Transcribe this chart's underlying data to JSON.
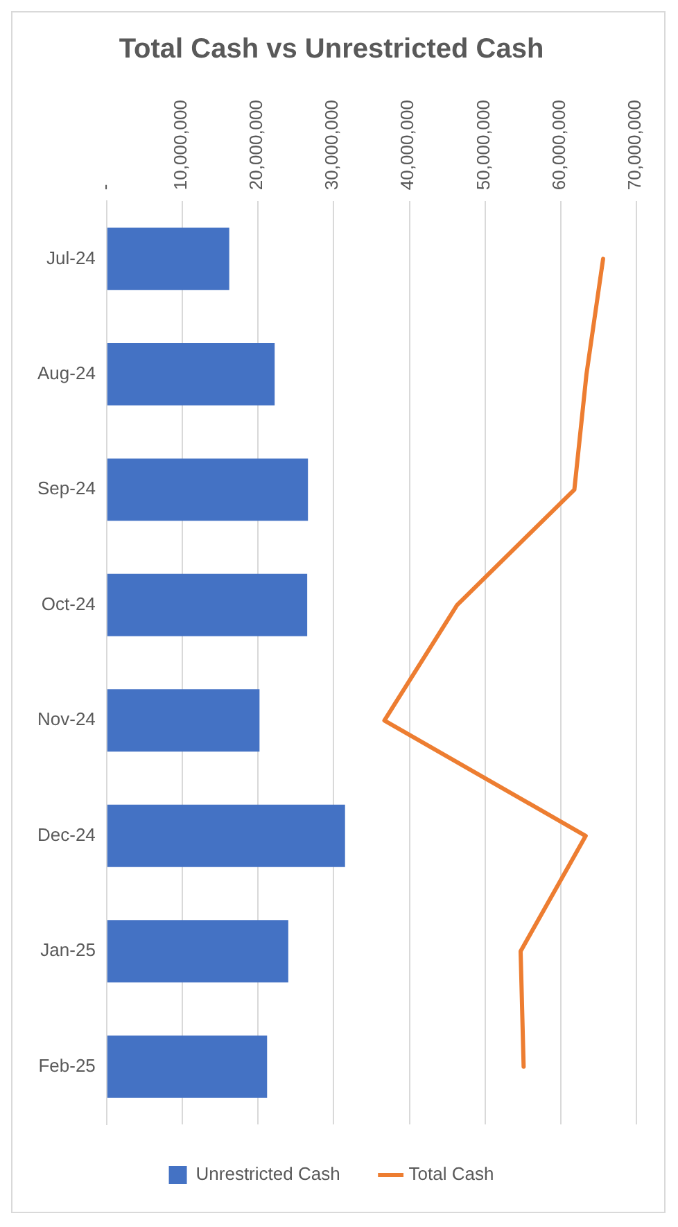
{
  "chart_data": {
    "type": "bar",
    "orientation": "horizontal",
    "title": "Total Cash vs Unrestricted Cash",
    "categories": [
      "Jul-24",
      "Aug-24",
      "Sep-24",
      "Oct-24",
      "Nov-24",
      "Dec-24",
      "Jan-25",
      "Feb-25"
    ],
    "series": [
      {
        "name": "Unrestricted Cash",
        "color": "#4472c4",
        "values": [
          16200000,
          22200000,
          26600000,
          26500000,
          20200000,
          31500000,
          24000000,
          21200000
        ]
      },
      {
        "name": "Total Cash",
        "type": "line",
        "color": "#ed7d31",
        "values": [
          65600000,
          63400000,
          61800000,
          46300000,
          36700000,
          63300000,
          54700000,
          55100000
        ]
      }
    ],
    "xlim": [
      0,
      70000000
    ],
    "xticks": [
      {
        "value": 0,
        "label": "-"
      },
      {
        "value": 10000000,
        "label": "10,000,000"
      },
      {
        "value": 20000000,
        "label": "20,000,000"
      },
      {
        "value": 30000000,
        "label": "30,000,000"
      },
      {
        "value": 40000000,
        "label": "40,000,000"
      },
      {
        "value": 50000000,
        "label": "50,000,000"
      },
      {
        "value": 60000000,
        "label": "60,000,000"
      },
      {
        "value": 70000000,
        "label": "70,000,000"
      }
    ],
    "grid": "x",
    "legend": "bottom",
    "marker": "none"
  }
}
